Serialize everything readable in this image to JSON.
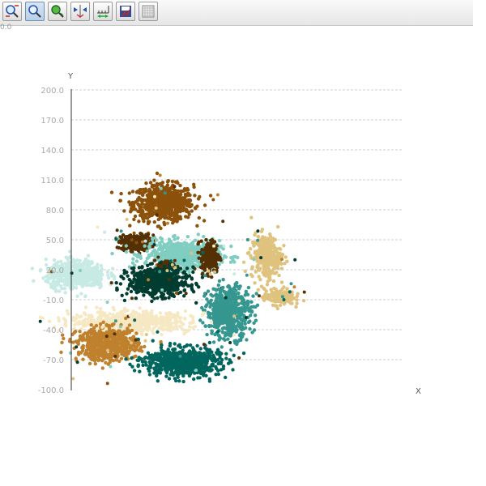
{
  "toolbar": {
    "buttons": [
      {
        "name": "zoom-in-button",
        "icon": "zoom-in-icon"
      },
      {
        "name": "zoom-button",
        "icon": "magnifier-icon",
        "active": true
      },
      {
        "name": "pan-button",
        "icon": "pan-icon"
      },
      {
        "name": "fit-button",
        "icon": "fit-icon"
      },
      {
        "name": "axis-scale-button",
        "icon": "axis-scale-icon"
      },
      {
        "name": "export-button",
        "icon": "export-icon"
      },
      {
        "name": "grid-button",
        "icon": "grid-icon"
      }
    ]
  },
  "corner_label": "0.0",
  "chart_data": {
    "type": "scatter",
    "xlabel": "X",
    "ylabel": "Y",
    "ylim": [
      -100,
      200
    ],
    "yticks": [
      "200.0",
      "170.0",
      "140.0",
      "110.0",
      "80.0",
      "50.0",
      "20.0",
      "-10.0",
      "-40.0",
      "-70.0",
      "-100.0"
    ],
    "grid": "horizontal-dashed",
    "legend": "none",
    "clusters": [
      {
        "color": "#8c510a",
        "cx": -10,
        "cy": 87,
        "sx": 8,
        "sy": 9,
        "n": 700
      },
      {
        "color": "#543005",
        "cx": -25,
        "cy": 47,
        "sx": 4,
        "sy": 4,
        "n": 260
      },
      {
        "color": "#80cdc1",
        "cx": 0,
        "cy": 35,
        "sx": 10,
        "sy": 7,
        "n": 600
      },
      {
        "color": "#543005",
        "cx": 15,
        "cy": 33,
        "sx": 2.5,
        "sy": 8,
        "n": 220
      },
      {
        "color": "#543005",
        "cx": -8,
        "cy": 25,
        "sx": 2,
        "sy": 2,
        "n": 80
      },
      {
        "color": "#dfc27d",
        "cx": 45,
        "cy": 33,
        "sx": 4,
        "sy": 11,
        "n": 300
      },
      {
        "color": "#dfc27d",
        "cx": 52,
        "cy": -7,
        "sx": 4,
        "sy": 4,
        "n": 200
      },
      {
        "color": "#c7eae5",
        "cx": -57,
        "cy": 15,
        "sx": 8,
        "sy": 7,
        "n": 520
      },
      {
        "color": "#003c30",
        "cx": -13,
        "cy": 8,
        "sx": 8,
        "sy": 7,
        "n": 620
      },
      {
        "color": "#35978f",
        "cx": 25,
        "cy": -22,
        "sx": 6,
        "sy": 13,
        "n": 560
      },
      {
        "color": "#f6e8c3",
        "cx": -28,
        "cy": -32,
        "sx": 16,
        "sy": 5,
        "n": 600
      },
      {
        "color": "#bf812d",
        "cx": -40,
        "cy": -55,
        "sx": 8,
        "sy": 8,
        "n": 640
      },
      {
        "color": "#01665e",
        "cx": 0,
        "cy": -72,
        "sx": 10,
        "sy": 7,
        "n": 700
      }
    ]
  }
}
